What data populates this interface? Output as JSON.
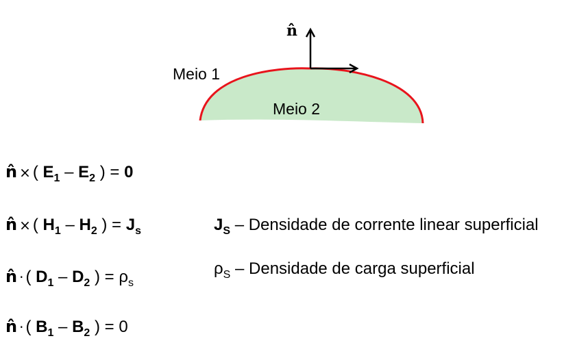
{
  "diagram": {
    "normal_symbol": "n̂",
    "medium1_label": "Meio 1",
    "medium2_label": "Meio 2",
    "colors": {
      "boundary": "#e8141c",
      "medium2_fill": "#c9e9c9",
      "arrow": "#000000"
    }
  },
  "equations": [
    {
      "hat": "n̂",
      "op": "×",
      "a": "E",
      "b": "E",
      "rhs": "0",
      "rhs_sub": ""
    },
    {
      "hat": "n̂",
      "op": "×",
      "a": "H",
      "b": "H",
      "rhs": "J",
      "rhs_sub": "s"
    },
    {
      "hat": "n̂",
      "op": "·",
      "a": "D",
      "b": "D",
      "rhs": "ρ",
      "rhs_sub": "s"
    },
    {
      "hat": "n̂",
      "op": "·",
      "a": "B",
      "b": "B",
      "rhs": "0",
      "rhs_sub": ""
    }
  ],
  "legend": [
    {
      "symbol": "J",
      "sub": "S",
      "text": "– Densidade de corrente linear superficial"
    },
    {
      "symbol": "ρ",
      "sub": "S",
      "text": "– Densidade de carga superficial"
    }
  ]
}
